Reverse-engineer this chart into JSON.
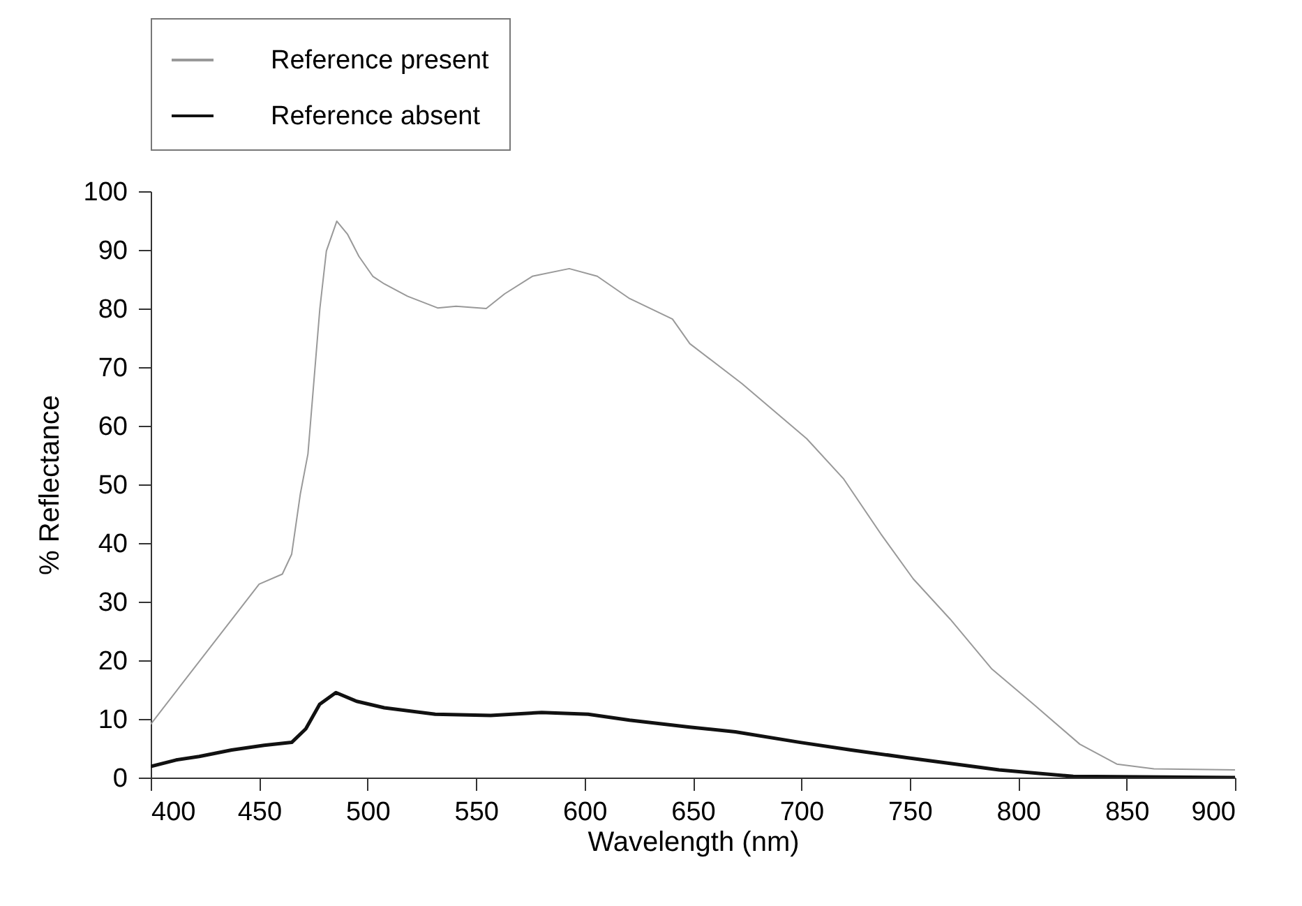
{
  "chart_data": {
    "type": "line",
    "xlabel": "Wavelength (nm)",
    "ylabel": "% Reflectance",
    "x": [
      400,
      411.7,
      422.4,
      437.3,
      450,
      452.3,
      460.7,
      465,
      469,
      471.5,
      472.5,
      477.9,
      478,
      481,
      485.4,
      485.8,
      490.7,
      495,
      496,
      502.4,
      507.7,
      518.4,
      531.2,
      532.3,
      540.8,
      554.7,
      556.8,
      563.2,
      576,
      580.3,
      593,
      601.7,
      605.9,
      620.8,
      640.6,
      648.6,
      669.6,
      672.6,
      699.5,
      702.5,
      719.6,
      723,
      736.6,
      748.6,
      751.6,
      768.7,
      787.9,
      791.2,
      807.1,
      825.4,
      828.4,
      845.5,
      862.6,
      900
    ],
    "series": [
      {
        "name": "Reference present",
        "color": "#999999",
        "values": [
          9.1,
          null,
          null,
          null,
          33.0,
          null,
          34.7,
          38.1,
          48.4,
          null,
          55.2,
          null,
          80,
          89.8,
          null,
          94.9,
          92.7,
          null,
          88.9,
          85.5,
          84.2,
          82.1,
          null,
          80.1,
          80.4,
          80,
          null,
          82.5,
          85.5,
          null,
          86.8,
          null,
          85.5,
          81.7,
          78.2,
          74,
          null,
          67.2,
          null,
          57.8,
          50.9,
          null,
          41.6,
          null,
          33.9,
          27.0,
          18.5,
          null,
          12.5,
          null,
          5.7,
          2.3,
          1.5,
          1.3
        ]
      },
      {
        "name": "Reference absent",
        "color": "#111111",
        "values": [
          1.9,
          3.0,
          3.6,
          4.7,
          null,
          5.5,
          null,
          6.0,
          null,
          8.3,
          null,
          12.5,
          null,
          null,
          14.5,
          null,
          null,
          13.0,
          null,
          null,
          11.9,
          null,
          10.8,
          null,
          null,
          null,
          10.6,
          null,
          null,
          11.1,
          null,
          10.8,
          null,
          9.8,
          null,
          8.6,
          7.8,
          null,
          6.0,
          null,
          null,
          4.7,
          null,
          3.4,
          null,
          null,
          null,
          1.3,
          null,
          0.2,
          null,
          null,
          null,
          0
        ]
      }
    ],
    "xlim": [
      400,
      900
    ],
    "xticks": [
      400,
      450,
      500,
      550,
      600,
      650,
      700,
      750,
      800,
      850,
      900
    ],
    "ylim": [
      0,
      100
    ],
    "yticks": [
      0,
      10,
      20,
      30,
      40,
      50,
      60,
      70,
      80,
      90,
      100
    ],
    "legend": "top",
    "grid": false
  }
}
